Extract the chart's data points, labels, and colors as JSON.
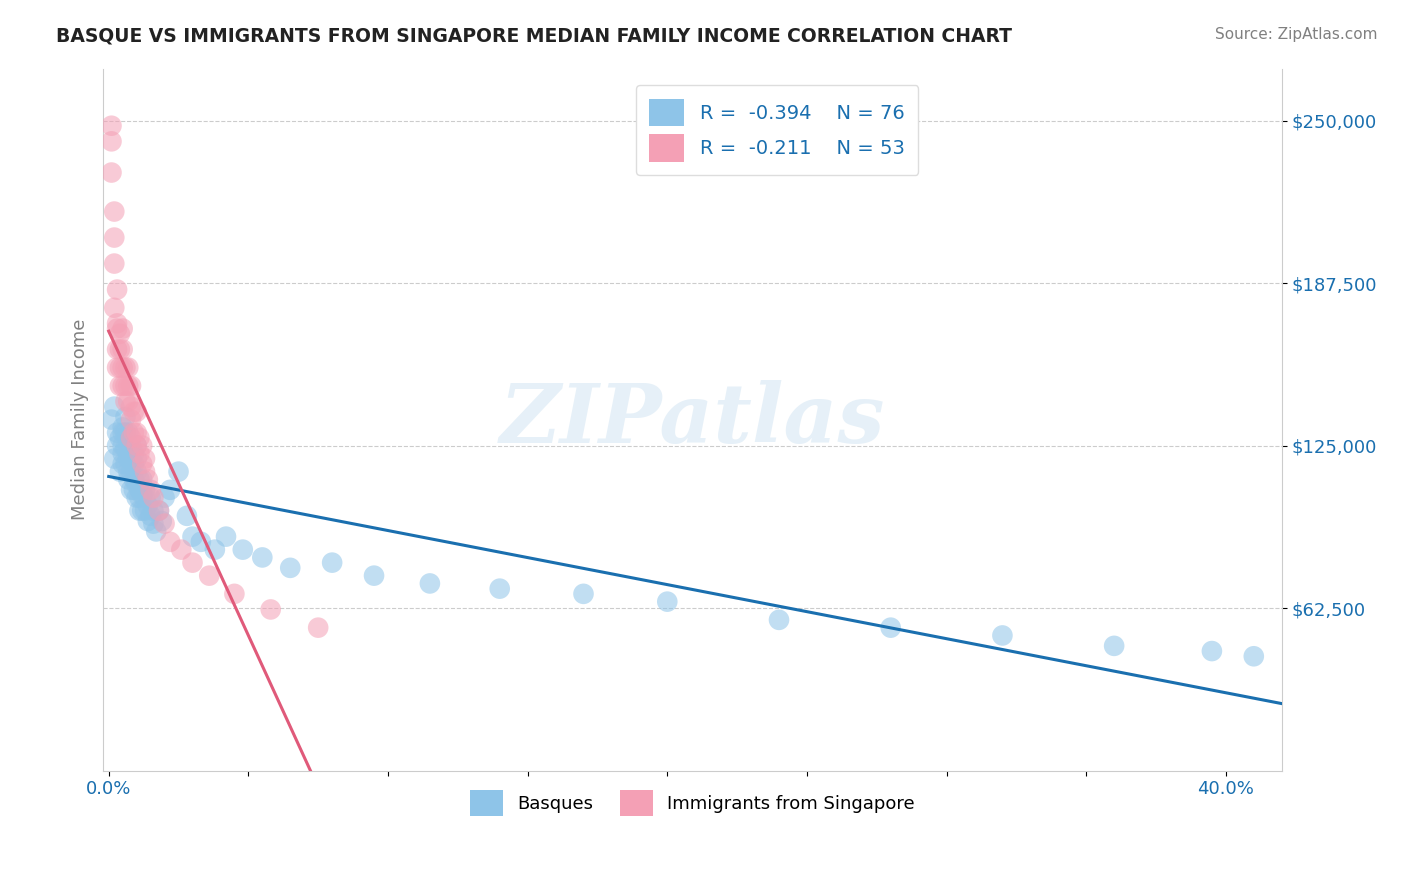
{
  "title": "BASQUE VS IMMIGRANTS FROM SINGAPORE MEDIAN FAMILY INCOME CORRELATION CHART",
  "source": "Source: ZipAtlas.com",
  "ylabel": "Median Family Income",
  "ytick_labels": [
    "$62,500",
    "$125,000",
    "$187,500",
    "$250,000"
  ],
  "ytick_values": [
    62500,
    125000,
    187500,
    250000
  ],
  "ylim": [
    0,
    270000
  ],
  "xlim": [
    -0.002,
    0.42
  ],
  "color_blue": "#8ec4e8",
  "color_pink": "#f4a0b5",
  "color_blue_line": "#1a6faf",
  "color_pink_line": "#e05a7a",
  "color_pink_dash": "#f4a0b5",
  "watermark": "ZIPatlas",
  "basque_x": [
    0.001,
    0.002,
    0.002,
    0.003,
    0.003,
    0.004,
    0.004,
    0.005,
    0.005,
    0.005,
    0.005,
    0.005,
    0.006,
    0.006,
    0.006,
    0.006,
    0.007,
    0.007,
    0.007,
    0.007,
    0.007,
    0.008,
    0.008,
    0.008,
    0.008,
    0.009,
    0.009,
    0.009,
    0.009,
    0.01,
    0.01,
    0.01,
    0.01,
    0.01,
    0.011,
    0.011,
    0.011,
    0.011,
    0.012,
    0.012,
    0.012,
    0.013,
    0.013,
    0.013,
    0.014,
    0.014,
    0.015,
    0.015,
    0.016,
    0.016,
    0.017,
    0.018,
    0.019,
    0.02,
    0.022,
    0.025,
    0.028,
    0.03,
    0.033,
    0.038,
    0.042,
    0.048,
    0.055,
    0.065,
    0.08,
    0.095,
    0.115,
    0.14,
    0.17,
    0.2,
    0.24,
    0.28,
    0.32,
    0.36,
    0.395,
    0.41
  ],
  "basque_y": [
    135000,
    140000,
    120000,
    125000,
    130000,
    115000,
    128000,
    122000,
    130000,
    118000,
    125000,
    132000,
    118000,
    124000,
    130000,
    136000,
    115000,
    120000,
    125000,
    130000,
    112000,
    115000,
    120000,
    125000,
    108000,
    112000,
    118000,
    122000,
    108000,
    105000,
    110000,
    115000,
    120000,
    125000,
    108000,
    112000,
    100000,
    105000,
    100000,
    106000,
    112000,
    100000,
    105000,
    108000,
    96000,
    102000,
    98000,
    105000,
    95000,
    100000,
    92000,
    100000,
    96000,
    105000,
    108000,
    115000,
    98000,
    90000,
    88000,
    85000,
    90000,
    85000,
    82000,
    78000,
    80000,
    75000,
    72000,
    70000,
    68000,
    65000,
    58000,
    55000,
    52000,
    48000,
    46000,
    44000
  ],
  "singapore_x": [
    0.001,
    0.001,
    0.001,
    0.002,
    0.002,
    0.002,
    0.002,
    0.003,
    0.003,
    0.003,
    0.003,
    0.003,
    0.004,
    0.004,
    0.004,
    0.004,
    0.005,
    0.005,
    0.005,
    0.005,
    0.006,
    0.006,
    0.006,
    0.007,
    0.007,
    0.007,
    0.008,
    0.008,
    0.008,
    0.008,
    0.009,
    0.009,
    0.01,
    0.01,
    0.01,
    0.011,
    0.011,
    0.012,
    0.012,
    0.013,
    0.013,
    0.014,
    0.015,
    0.016,
    0.018,
    0.02,
    0.022,
    0.026,
    0.03,
    0.036,
    0.045,
    0.058,
    0.075
  ],
  "singapore_y": [
    248000,
    242000,
    230000,
    215000,
    205000,
    195000,
    178000,
    185000,
    172000,
    162000,
    155000,
    170000,
    155000,
    162000,
    148000,
    168000,
    148000,
    155000,
    162000,
    170000,
    148000,
    155000,
    142000,
    142000,
    148000,
    155000,
    135000,
    140000,
    148000,
    128000,
    130000,
    138000,
    125000,
    130000,
    138000,
    122000,
    128000,
    118000,
    125000,
    115000,
    120000,
    112000,
    108000,
    105000,
    100000,
    95000,
    88000,
    85000,
    80000,
    75000,
    68000,
    62000,
    55000
  ]
}
